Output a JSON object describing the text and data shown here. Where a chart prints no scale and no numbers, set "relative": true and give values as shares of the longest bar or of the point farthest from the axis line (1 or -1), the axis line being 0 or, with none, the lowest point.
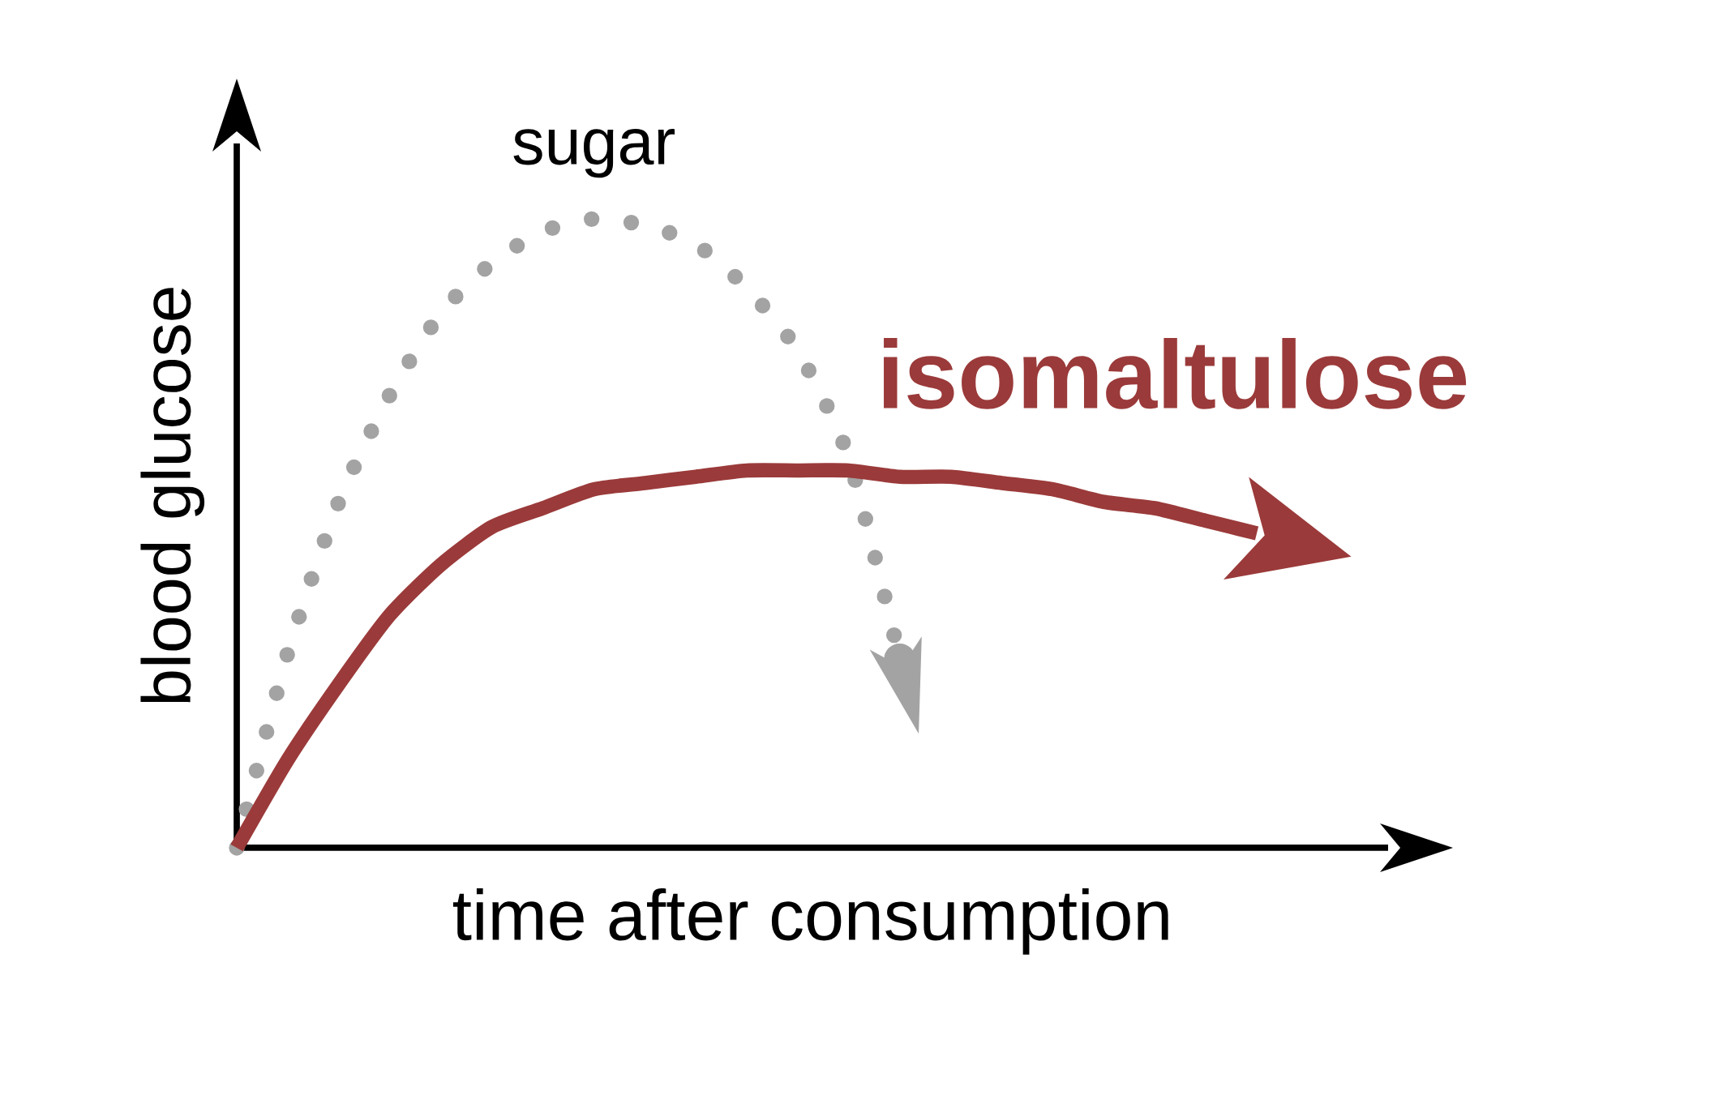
{
  "chart_data": {
    "type": "line",
    "relative": true,
    "xlabel": "time after consumption",
    "ylabel": "blood glucose",
    "categories": [
      null,
      null,
      null,
      null,
      null,
      null,
      null,
      null,
      null,
      null,
      null,
      null,
      null,
      null,
      null,
      null,
      null,
      null,
      null,
      null,
      null
    ],
    "series": [
      {
        "name": "sugar",
        "color": "#a3a3a3",
        "line_style": "dotted",
        "values": [
          0.0,
          0.31,
          0.55,
          0.72,
          0.85,
          0.93,
          0.98,
          1.0,
          0.99,
          0.96,
          0.89,
          0.79,
          0.62,
          0.3,
          null,
          null,
          null,
          null,
          null,
          null,
          null
        ]
      },
      {
        "name": "isomaltulose",
        "color": "#9b3a3a",
        "line_style": "solid",
        "values": [
          0.0,
          0.14,
          0.26,
          0.37,
          0.45,
          0.51,
          0.54,
          0.57,
          0.58,
          0.59,
          0.6,
          0.6,
          0.6,
          0.59,
          0.59,
          0.58,
          0.57,
          0.55,
          0.54,
          0.52,
          0.5
        ]
      }
    ],
    "marker": "none"
  }
}
